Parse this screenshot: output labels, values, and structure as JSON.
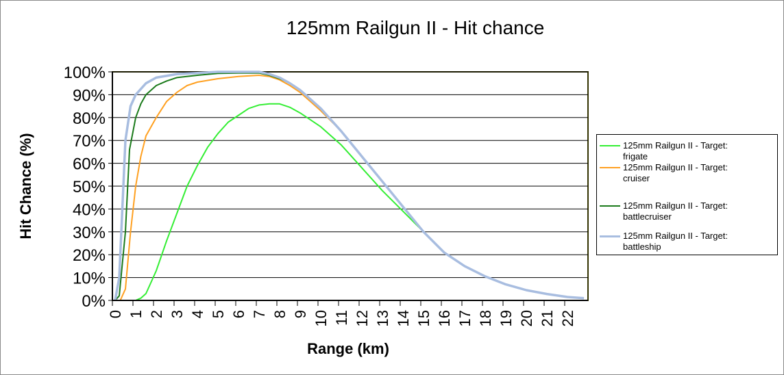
{
  "chart_data": {
    "type": "line",
    "title": "125mm Railgun II - Hit chance",
    "xlabel": "Range (km)",
    "ylabel": "Hit Chance (%)",
    "xlim": [
      0,
      23
    ],
    "ylim": [
      0,
      100
    ],
    "x_ticks": [
      "0",
      "1",
      "2",
      "3",
      "4",
      "5",
      "6",
      "7",
      "8",
      "9",
      "10",
      "11",
      "12",
      "13",
      "14",
      "15",
      "16",
      "17",
      "18",
      "19",
      "20",
      "21",
      "22"
    ],
    "y_ticks": [
      "0%",
      "10%",
      "20%",
      "30%",
      "40%",
      "50%",
      "60%",
      "70%",
      "80%",
      "90%",
      "100%"
    ],
    "grid": true,
    "legend_position": "right",
    "series": [
      {
        "name": "125mm Railgun II - Target:  frigate",
        "color": "#33ee33",
        "points": [
          [
            0,
            0
          ],
          [
            1,
            0
          ],
          [
            1.25,
            1
          ],
          [
            1.5,
            3
          ],
          [
            2,
            13
          ],
          [
            2.5,
            26
          ],
          [
            3,
            38
          ],
          [
            3.5,
            50
          ],
          [
            4,
            59
          ],
          [
            4.5,
            67
          ],
          [
            5,
            73
          ],
          [
            5.5,
            78
          ],
          [
            6,
            81
          ],
          [
            6.5,
            84
          ],
          [
            7,
            85.5
          ],
          [
            7.5,
            86
          ],
          [
            8,
            86
          ],
          [
            8.5,
            84.5
          ],
          [
            9,
            82
          ],
          [
            9.5,
            79
          ],
          [
            10,
            76
          ],
          [
            11,
            68
          ],
          [
            12,
            58
          ],
          [
            13,
            48
          ],
          [
            14,
            39
          ],
          [
            15,
            30
          ],
          [
            16,
            21
          ],
          [
            17,
            15
          ],
          [
            18,
            10.5
          ],
          [
            19,
            7
          ],
          [
            20,
            4.5
          ],
          [
            21,
            2.8
          ],
          [
            22,
            1.5
          ],
          [
            22.8,
            1
          ]
        ]
      },
      {
        "name": "125mm Railgun II - Target:  cruiser",
        "color": "#ffa020",
        "points": [
          [
            0.25,
            0
          ],
          [
            0.5,
            5
          ],
          [
            0.75,
            30
          ],
          [
            1,
            50
          ],
          [
            1.25,
            63
          ],
          [
            1.5,
            72
          ],
          [
            2,
            80
          ],
          [
            2.5,
            87
          ],
          [
            3,
            91
          ],
          [
            3.5,
            94
          ],
          [
            4,
            95.5
          ],
          [
            5,
            97
          ],
          [
            6,
            98
          ],
          [
            7,
            98.5
          ],
          [
            7.5,
            98
          ],
          [
            8,
            96.5
          ],
          [
            8.5,
            94
          ],
          [
            9,
            91
          ],
          [
            9.5,
            87
          ],
          [
            10,
            83
          ],
          [
            11,
            74
          ],
          [
            12,
            63
          ],
          [
            13,
            52
          ],
          [
            14,
            41
          ],
          [
            15,
            30
          ],
          [
            16,
            21
          ],
          [
            17,
            15
          ],
          [
            18,
            10.5
          ],
          [
            19,
            7
          ],
          [
            20,
            4.5
          ],
          [
            21,
            2.8
          ],
          [
            22,
            1.5
          ],
          [
            22.8,
            1
          ]
        ]
      },
      {
        "name": "125mm Railgun II - Target:  battlecruiser",
        "color": "#1a7a1a",
        "points": [
          [
            0,
            0
          ],
          [
            0.2,
            2
          ],
          [
            0.5,
            30
          ],
          [
            0.7,
            66
          ],
          [
            1,
            80
          ],
          [
            1.25,
            86
          ],
          [
            1.5,
            90
          ],
          [
            2,
            94
          ],
          [
            2.5,
            96
          ],
          [
            3,
            97.5
          ],
          [
            4,
            98.5
          ],
          [
            5,
            99.3
          ],
          [
            6,
            99.5
          ],
          [
            7,
            99.5
          ],
          [
            7.5,
            98.5
          ],
          [
            8,
            97
          ],
          [
            8.5,
            95
          ],
          [
            9,
            92
          ],
          [
            9.5,
            88
          ],
          [
            10,
            84
          ],
          [
            11,
            74
          ],
          [
            12,
            63
          ],
          [
            13,
            52
          ],
          [
            14,
            41
          ],
          [
            15,
            30
          ],
          [
            16,
            21
          ],
          [
            17,
            15
          ],
          [
            18,
            10.5
          ],
          [
            19,
            7
          ],
          [
            20,
            4.5
          ],
          [
            21,
            2.8
          ],
          [
            22,
            1.5
          ],
          [
            22.8,
            1
          ]
        ]
      },
      {
        "name": "125mm Railgun II - Target:  battleship",
        "color": "#a8bde0",
        "points": [
          [
            0,
            0
          ],
          [
            0.2,
            10
          ],
          [
            0.5,
            70
          ],
          [
            0.75,
            85
          ],
          [
            1,
            90
          ],
          [
            1.5,
            95
          ],
          [
            2,
            97.5
          ],
          [
            3,
            99
          ],
          [
            4,
            99.5
          ],
          [
            5,
            100
          ],
          [
            7,
            100
          ],
          [
            7.5,
            99
          ],
          [
            8,
            97.5
          ],
          [
            8.5,
            95
          ],
          [
            9,
            92
          ],
          [
            9.5,
            88
          ],
          [
            10,
            84
          ],
          [
            11,
            74
          ],
          [
            12,
            63
          ],
          [
            13,
            52
          ],
          [
            14,
            41
          ],
          [
            15,
            30
          ],
          [
            16,
            21
          ],
          [
            17,
            15
          ],
          [
            18,
            10.5
          ],
          [
            19,
            7
          ],
          [
            20,
            4.5
          ],
          [
            21,
            2.8
          ],
          [
            22,
            1.5
          ],
          [
            22.8,
            1
          ]
        ]
      }
    ]
  }
}
